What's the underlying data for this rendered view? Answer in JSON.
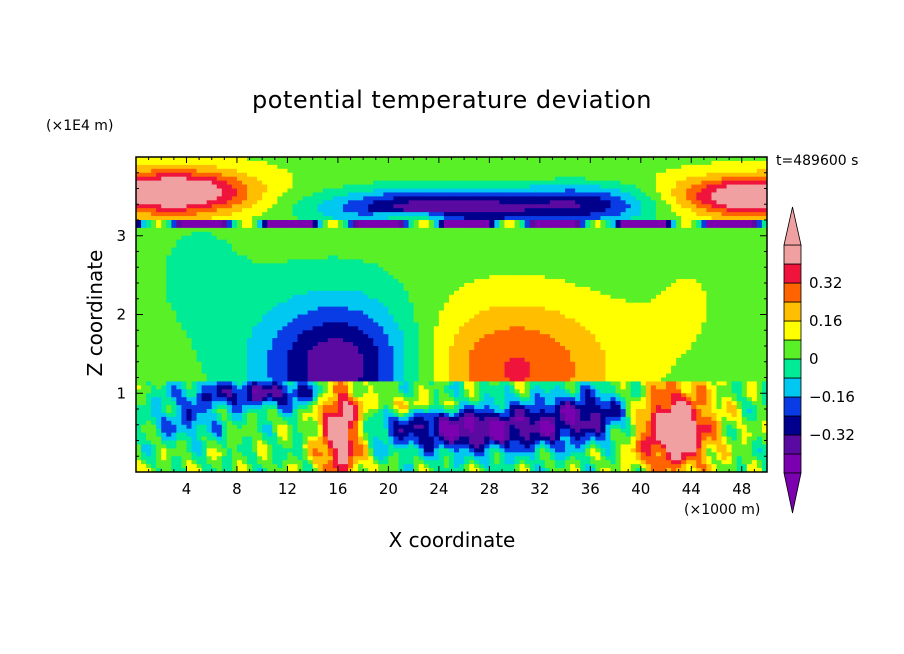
{
  "chart_data": {
    "type": "heatmap",
    "title": "potential temperature deviation",
    "xlabel": "X coordinate",
    "ylabel": "Z coordinate",
    "x_unit": "(×1000 m)",
    "z_unit": "(×1E4 m)",
    "timestamp": "t=489600 s",
    "x_ticks": [
      4,
      8,
      12,
      16,
      20,
      24,
      28,
      32,
      36,
      40,
      44,
      48
    ],
    "z_ticks": [
      1,
      2,
      3
    ],
    "xlim": [
      0,
      50
    ],
    "zlim": [
      0,
      4
    ],
    "colorbar": {
      "levels": [
        -0.48,
        -0.4,
        -0.32,
        -0.24,
        -0.16,
        -0.08,
        0,
        0.08,
        0.16,
        0.24,
        0.32,
        0.4
      ],
      "tick_labels": [
        "0.32",
        "0.16",
        "0",
        "−0.16",
        "−0.32"
      ],
      "tick_values": [
        0.32,
        0.16,
        0,
        -0.16,
        -0.32
      ],
      "colors": [
        "#7a00b0",
        "#5a0aa0",
        "#00008c",
        "#0a3ce6",
        "#00c8f0",
        "#00eb96",
        "#5af028",
        "#ffff00",
        "#ffbe00",
        "#ff6400",
        "#f0143c",
        "#f0a0a0"
      ],
      "extend": "both"
    },
    "fields": [
      {
        "name": "upper-layer",
        "z_range": [
          3.1,
          3.9
        ],
        "pattern": "warm at x<12 and x>40, cold minimum -0.4 near x=24"
      },
      {
        "name": "middle-layer",
        "z_range": [
          1.15,
          3.1
        ],
        "pattern": "cold dome centered x=16 (min -0.32 at z≈1.5), warm dome centered x=30 (max +0.24 at z≈1.5)"
      },
      {
        "name": "lower-layer",
        "z_range": [
          0,
          1.15
        ],
        "pattern": "turbulent; warm plumes near x=16 and x=43 (>0.4), cold band near x=20-38"
      }
    ]
  }
}
